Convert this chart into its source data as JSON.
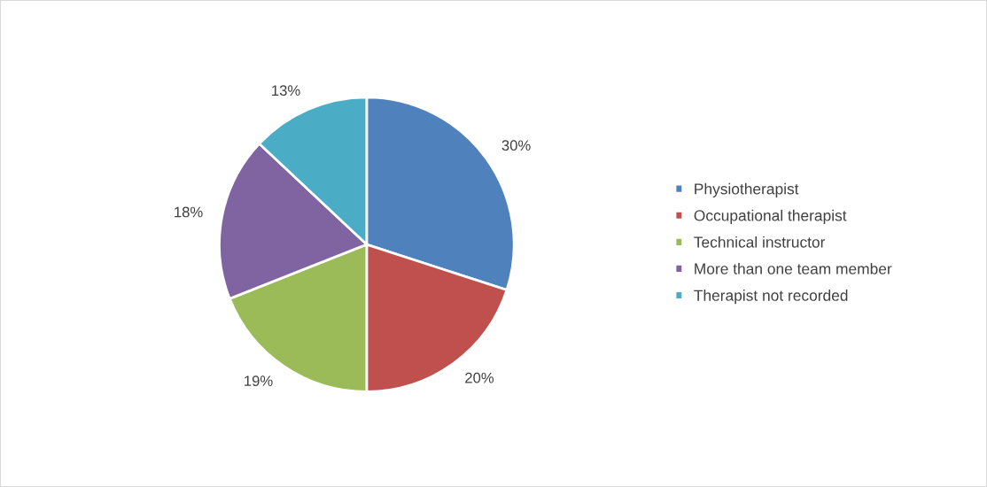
{
  "chart_data": {
    "type": "pie",
    "categories": [
      "Physiotherapist",
      "Occupational therapist",
      "Technical instructor",
      "More than one team member",
      "Therapist not recorded"
    ],
    "values": [
      30,
      20,
      19,
      18,
      13
    ],
    "value_labels": [
      "30%",
      "20%",
      "19%",
      "18%",
      "13%"
    ],
    "colors": [
      "#4f81bd",
      "#c0504d",
      "#9bbb59",
      "#8064a2",
      "#4bacc6"
    ],
    "legend": "right"
  }
}
